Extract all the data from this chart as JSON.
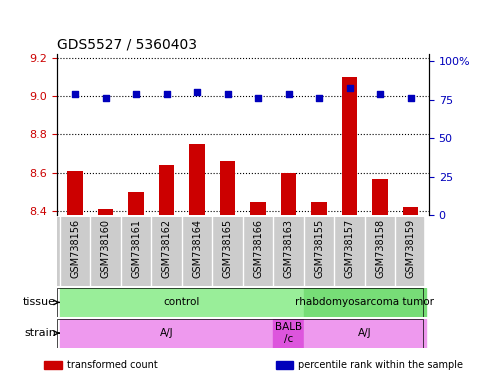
{
  "title": "GDS5527 / 5360403",
  "samples": [
    "GSM738156",
    "GSM738160",
    "GSM738161",
    "GSM738162",
    "GSM738164",
    "GSM738165",
    "GSM738166",
    "GSM738163",
    "GSM738155",
    "GSM738157",
    "GSM738158",
    "GSM738159"
  ],
  "bar_values": [
    8.61,
    8.41,
    8.5,
    8.64,
    8.75,
    8.66,
    8.45,
    8.6,
    8.45,
    9.1,
    8.57,
    8.42
  ],
  "dot_values": [
    79,
    76,
    79,
    79,
    80,
    79,
    76,
    79,
    76,
    83,
    79,
    76
  ],
  "ylim_left": [
    8.38,
    9.22
  ],
  "ylim_right": [
    0,
    105
  ],
  "yticks_left": [
    8.4,
    8.6,
    8.8,
    9.0,
    9.2
  ],
  "yticks_right": [
    0,
    25,
    50,
    75,
    100
  ],
  "ytick_labels_right": [
    "0",
    "25",
    "50",
    "75",
    "100%"
  ],
  "bar_color": "#cc0000",
  "dot_color": "#0000bb",
  "bar_bottom": 8.38,
  "tissue_labels": [
    {
      "text": "control",
      "start": 0,
      "end": 7,
      "color": "#99ee99"
    },
    {
      "text": "rhabdomyosarcoma tumor",
      "start": 8,
      "end": 11,
      "color": "#77dd77"
    }
  ],
  "strain_labels": [
    {
      "text": "A/J",
      "start": 0,
      "end": 6,
      "color": "#ee99ee"
    },
    {
      "text": "BALB\n/c",
      "start": 7,
      "end": 7,
      "color": "#dd55dd"
    },
    {
      "text": "A/J",
      "start": 8,
      "end": 11,
      "color": "#ee99ee"
    }
  ],
  "tissue_row_label": "tissue",
  "strain_row_label": "strain",
  "legend_items": [
    {
      "color": "#cc0000",
      "label": "transformed count"
    },
    {
      "color": "#0000bb",
      "label": "percentile rank within the sample"
    }
  ],
  "grid_linestyle": "dotted",
  "xticklabel_bg": "#cccccc",
  "xlabel_fontsize": 7,
  "n_samples": 12
}
